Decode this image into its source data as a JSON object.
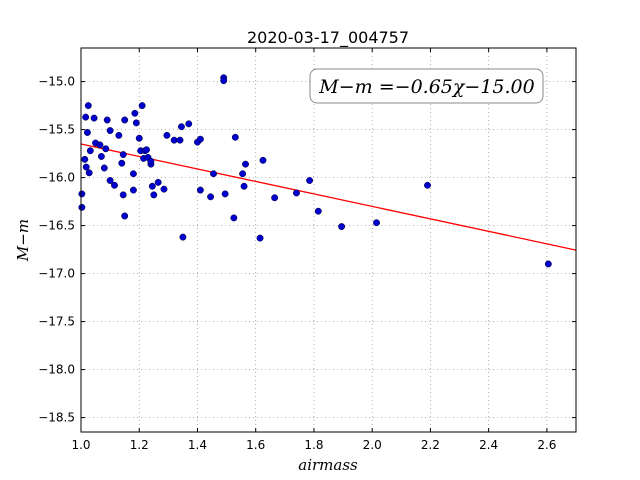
{
  "chart_data": {
    "type": "scatter",
    "title": "2020-03-17_004757",
    "xlabel": "airmass",
    "ylabel": "M−m",
    "xlim": [
      1.0,
      2.7
    ],
    "ylim": [
      -18.65,
      -14.65
    ],
    "x_ticks": [
      "1.0",
      "1.2",
      "1.4",
      "1.6",
      "1.8",
      "2.0",
      "2.2",
      "2.4",
      "2.6"
    ],
    "y_ticks": [
      "−15.0",
      "−15.5",
      "−16.0",
      "−16.5",
      "−17.0",
      "−17.5",
      "−18.0",
      "−18.5"
    ],
    "grid": true,
    "annotation": "M−m =−0.65χ−15.00",
    "fit": {
      "slope": -0.65,
      "intercept": -15.0,
      "color": "#ff0000"
    },
    "point_color": "#0000cc",
    "points": [
      [
        1.003,
        -16.17
      ],
      [
        1.003,
        -16.31
      ],
      [
        1.013,
        -15.81
      ],
      [
        1.016,
        -15.37
      ],
      [
        1.018,
        -15.89
      ],
      [
        1.022,
        -15.53
      ],
      [
        1.025,
        -15.25
      ],
      [
        1.028,
        -15.95
      ],
      [
        1.032,
        -15.72
      ],
      [
        1.045,
        -15.38
      ],
      [
        1.05,
        -15.64
      ],
      [
        1.065,
        -15.66
      ],
      [
        1.07,
        -15.78
      ],
      [
        1.08,
        -15.9
      ],
      [
        1.085,
        -15.7
      ],
      [
        1.09,
        -15.4
      ],
      [
        1.1,
        -15.51
      ],
      [
        1.1,
        -16.03
      ],
      [
        1.115,
        -16.08
      ],
      [
        1.13,
        -15.56
      ],
      [
        1.14,
        -15.85
      ],
      [
        1.145,
        -15.76
      ],
      [
        1.145,
        -16.18
      ],
      [
        1.15,
        -16.4
      ],
      [
        1.15,
        -15.4
      ],
      [
        1.18,
        -15.96
      ],
      [
        1.18,
        -16.13
      ],
      [
        1.185,
        -15.33
      ],
      [
        1.19,
        -15.43
      ],
      [
        1.2,
        -15.59
      ],
      [
        1.205,
        -15.72
      ],
      [
        1.21,
        -15.25
      ],
      [
        1.215,
        -15.8
      ],
      [
        1.22,
        -15.72
      ],
      [
        1.225,
        -15.71
      ],
      [
        1.23,
        -15.79
      ],
      [
        1.24,
        -15.86
      ],
      [
        1.24,
        -15.83
      ],
      [
        1.245,
        -16.09
      ],
      [
        1.25,
        -16.18
      ],
      [
        1.265,
        -16.05
      ],
      [
        1.285,
        -16.12
      ],
      [
        1.295,
        -15.56
      ],
      [
        1.32,
        -15.61
      ],
      [
        1.34,
        -15.61
      ],
      [
        1.345,
        -15.47
      ],
      [
        1.35,
        -16.62
      ],
      [
        1.37,
        -15.44
      ],
      [
        1.4,
        -15.63
      ],
      [
        1.41,
        -15.6
      ],
      [
        1.41,
        -16.13
      ],
      [
        1.445,
        -16.2
      ],
      [
        1.455,
        -15.96
      ],
      [
        1.49,
        -14.96
      ],
      [
        1.49,
        -14.99
      ],
      [
        1.495,
        -16.17
      ],
      [
        1.525,
        -16.42
      ],
      [
        1.53,
        -15.58
      ],
      [
        1.555,
        -15.96
      ],
      [
        1.56,
        -16.09
      ],
      [
        1.565,
        -15.86
      ],
      [
        1.615,
        -16.63
      ],
      [
        1.625,
        -15.82
      ],
      [
        1.665,
        -16.21
      ],
      [
        1.74,
        -16.16
      ],
      [
        1.785,
        -16.03
      ],
      [
        1.815,
        -16.35
      ],
      [
        1.895,
        -16.51
      ],
      [
        2.015,
        -16.47
      ],
      [
        2.19,
        -16.08
      ],
      [
        2.605,
        -16.9
      ]
    ]
  }
}
